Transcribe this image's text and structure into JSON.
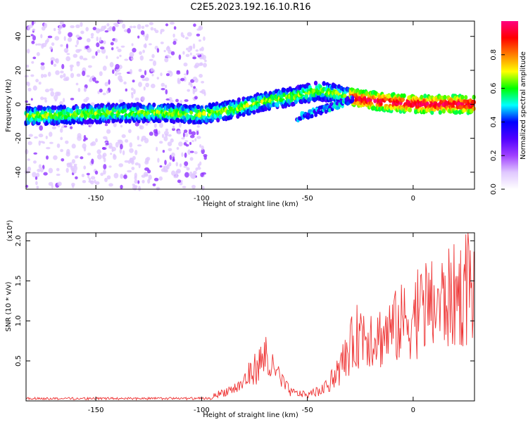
{
  "title": "C2E5.2023.192.16.10.R16",
  "chart_data": [
    {
      "type": "heatmap",
      "name": "spectrogram",
      "xlabel": "Height of straight line (km)",
      "ylabel": "Frequency (Hz)",
      "xlim": [
        -183,
        29
      ],
      "ylim": [
        -50,
        49
      ],
      "xticks": [
        -150,
        -100,
        -50,
        0
      ],
      "yticks": [
        -40,
        -20,
        0,
        20,
        40
      ],
      "colorbar": {
        "label": "Normalized spectral amplitude",
        "range": [
          0,
          1
        ],
        "ticks": [
          0.0,
          0.2,
          0.4,
          0.6,
          0.8
        ],
        "colormap": [
          "#ffffff",
          "#e0c8ff",
          "#a040ff",
          "#5000ff",
          "#0000ff",
          "#00ffff",
          "#00ff00",
          "#ffff00",
          "#ff8000",
          "#ff0000",
          "#ff0080"
        ]
      },
      "ridge": [
        {
          "x": -183,
          "f": -7
        },
        {
          "x": -160,
          "f": -6
        },
        {
          "x": -140,
          "f": -5
        },
        {
          "x": -120,
          "f": -5
        },
        {
          "x": -100,
          "f": -6
        },
        {
          "x": -85,
          "f": -3
        },
        {
          "x": -70,
          "f": 2
        },
        {
          "x": -55,
          "f": 5
        },
        {
          "x": -45,
          "f": 8
        },
        {
          "x": -35,
          "f": 6
        },
        {
          "x": -25,
          "f": 3
        },
        {
          "x": -10,
          "f": 1
        },
        {
          "x": 5,
          "f": 0
        },
        {
          "x": 29,
          "f": 0
        }
      ],
      "branch": [
        {
          "x": -55,
          "f": -8
        },
        {
          "x": -45,
          "f": -4
        },
        {
          "x": -35,
          "f": 0
        },
        {
          "x": -28,
          "f": 4
        }
      ]
    },
    {
      "type": "line",
      "name": "snr",
      "xlabel": "Height of straight line (km)",
      "ylabel": "SNR (10 * v/v)",
      "yscale_label": "(x10⁴)",
      "xlim": [
        -183,
        29
      ],
      "ylim": [
        0,
        2.1
      ],
      "xticks": [
        -150,
        -100,
        -50,
        0
      ],
      "yticks": [
        0.5,
        1.0,
        1.5,
        2.0
      ],
      "color": "#ee3333",
      "envelope": [
        {
          "x": -183,
          "y": 0.02
        },
        {
          "x": -110,
          "y": 0.03
        },
        {
          "x": -95,
          "y": 0.08
        },
        {
          "x": -82,
          "y": 0.25
        },
        {
          "x": -75,
          "y": 0.55
        },
        {
          "x": -70,
          "y": 0.75
        },
        {
          "x": -65,
          "y": 0.45
        },
        {
          "x": -58,
          "y": 0.15
        },
        {
          "x": -50,
          "y": 0.1
        },
        {
          "x": -42,
          "y": 0.2
        },
        {
          "x": -35,
          "y": 0.5
        },
        {
          "x": -30,
          "y": 0.9
        },
        {
          "x": -25,
          "y": 1.2
        },
        {
          "x": -15,
          "y": 1.1
        },
        {
          "x": -5,
          "y": 1.35
        },
        {
          "x": 5,
          "y": 1.55
        },
        {
          "x": 15,
          "y": 1.7
        },
        {
          "x": 22,
          "y": 1.85
        },
        {
          "x": 29,
          "y": 1.95
        }
      ]
    }
  ]
}
